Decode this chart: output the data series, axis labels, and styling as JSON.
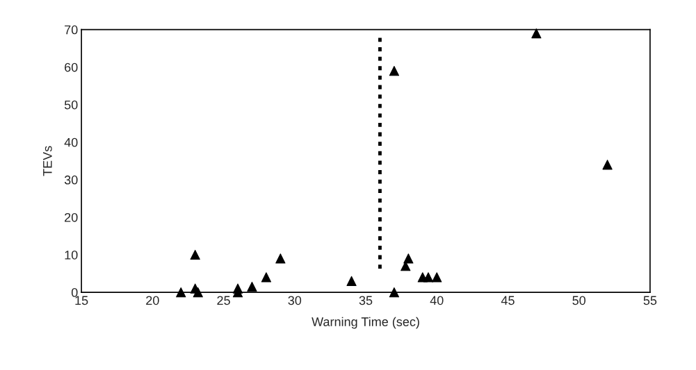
{
  "chart_data": {
    "type": "scatter",
    "xlabel": "Warning Time (sec)",
    "ylabel": "TEVs",
    "x": [
      22,
      23,
      23,
      23.2,
      26,
      26,
      27,
      28,
      29,
      34,
      37,
      37,
      37.8,
      38,
      39,
      39.4,
      40,
      47,
      52
    ],
    "values": [
      0,
      10,
      1,
      0,
      1,
      0,
      1.5,
      4,
      9,
      3,
      59,
      0,
      7,
      9,
      4,
      4,
      4,
      69,
      34
    ],
    "color": "#000000",
    "marker": "triangle",
    "xlim": [
      15,
      55
    ],
    "xticks": [
      15,
      20,
      25,
      30,
      35,
      40,
      45,
      50,
      55
    ],
    "ylim": [
      0,
      70
    ],
    "yticks": [
      0,
      10,
      20,
      30,
      40,
      50,
      60,
      70
    ],
    "ref_lines": [
      {
        "axis": "x",
        "value": 36,
        "color": "#000000",
        "line_style": "dotted"
      }
    ],
    "grid": false,
    "legend": false
  }
}
